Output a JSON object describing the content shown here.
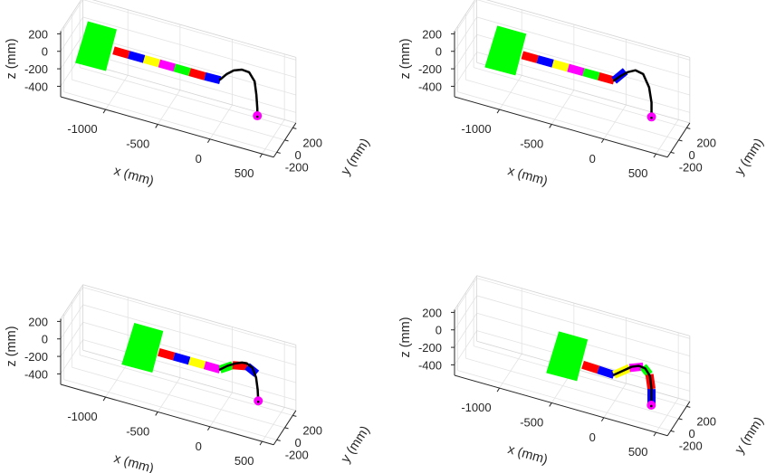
{
  "link_colors": [
    "#ff0000",
    "#0000ff",
    "#ffff00",
    "#ff00ff",
    "#00ff00",
    "#ff0000",
    "#0000ff"
  ],
  "base_color": "#00ff00",
  "cable_color": "#000000",
  "end_effector_color": "#ff00ff",
  "chart_data": [
    {
      "type": "line",
      "projection": "3d",
      "xlabel": "x (mm)",
      "ylabel": "y (mm)",
      "zlabel": "z (mm)",
      "xticks": [
        -1000,
        -500,
        0,
        500
      ],
      "yticks": [
        -200,
        0,
        200
      ],
      "zticks": [
        -400,
        -200,
        0,
        200
      ],
      "xlim": [
        -1430,
        610
      ],
      "ylim": [
        -280,
        280
      ],
      "zlim": [
        -520,
        230
      ],
      "grid": true,
      "base": {
        "x": -1190,
        "y": 0,
        "z": -50
      },
      "joints": [
        [
          -1030,
          -50
        ],
        [
          -884,
          -50
        ],
        [
          -738,
          -50
        ],
        [
          -592,
          -50
        ],
        [
          -446,
          -50
        ],
        [
          -300,
          -50
        ],
        [
          -154,
          -50
        ],
        [
          -8,
          -45
        ]
      ],
      "cable": [
        [
          -9,
          -38
        ],
        [
          52,
          44
        ],
        [
          121,
          110
        ],
        [
          199,
          146
        ],
        [
          269,
          139
        ],
        [
          321,
          53
        ],
        [
          338,
          -96
        ],
        [
          347,
          -249
        ],
        [
          347,
          -332
        ]
      ],
      "end_effector": [
        347,
        -332
      ]
    },
    {
      "type": "line",
      "projection": "3d",
      "xlabel": "x (mm)",
      "ylabel": "y (mm)",
      "zlabel": "z (mm)",
      "xticks": [
        -1000,
        -500,
        0,
        500
      ],
      "yticks": [
        -200,
        0,
        200
      ],
      "zticks": [
        -400,
        -200,
        0,
        200
      ],
      "xlim": [
        -1430,
        610
      ],
      "ylim": [
        -280,
        280
      ],
      "zlim": [
        -520,
        230
      ],
      "grid": true,
      "base": {
        "x": -1040,
        "y": 0,
        "z": -50
      },
      "joints": [
        [
          -888,
          -55
        ],
        [
          -741,
          -54
        ],
        [
          -595,
          -53
        ],
        [
          -448,
          -52
        ],
        [
          -302,
          -51
        ],
        [
          -155,
          -50
        ],
        [
          -9,
          -49
        ],
        [
          100,
          95
        ]
      ],
      "cable": [
        [
          -9,
          -49
        ],
        [
          50,
          20
        ],
        [
          120,
          90
        ],
        [
          197,
          138
        ],
        [
          270,
          120
        ],
        [
          327,
          -14
        ],
        [
          350,
          -179
        ],
        [
          350,
          -344
        ]
      ],
      "end_effector": [
        350,
        -344
      ]
    },
    {
      "type": "line",
      "projection": "3d",
      "xlabel": "x (mm)",
      "ylabel": "y (mm)",
      "zlabel": "z (mm)",
      "xticks": [
        -1000,
        -500,
        0,
        500
      ],
      "yticks": [
        -200,
        0,
        200
      ],
      "zticks": [
        -400,
        -200,
        0,
        200
      ],
      "xlim": [
        -1430,
        610
      ],
      "ylim": [
        -280,
        280
      ],
      "zlim": [
        -520,
        230
      ],
      "grid": true,
      "base": {
        "x": -745,
        "y": 0,
        "z": -60
      },
      "joints": [
        [
          -598,
          -65
        ],
        [
          -451,
          -65
        ],
        [
          -304,
          -65
        ],
        [
          -157,
          -65
        ],
        [
          -10,
          -65
        ],
        [
          110,
          25
        ],
        [
          250,
          60
        ],
        [
          340,
          5
        ]
      ],
      "cable": [
        [
          -10,
          -65
        ],
        [
          60,
          0
        ],
        [
          130,
          50
        ],
        [
          200,
          85
        ],
        [
          245,
          92
        ],
        [
          300,
          60
        ],
        [
          335,
          -40
        ],
        [
          350,
          -170
        ],
        [
          356,
          -300
        ]
      ],
      "end_effector": [
        356,
        -300
      ]
    },
    {
      "type": "line",
      "projection": "3d",
      "xlabel": "x (mm)",
      "ylabel": "y (mm)",
      "zlabel": "z (mm)",
      "xticks": [
        -1000,
        -500,
        0,
        500
      ],
      "yticks": [
        -200,
        0,
        200
      ],
      "zticks": [
        -400,
        -200,
        0,
        200
      ],
      "xlim": [
        -1430,
        610
      ],
      "ylim": [
        -280,
        280
      ],
      "zlim": [
        -520,
        230
      ],
      "grid": true,
      "base": {
        "x": -451,
        "y": 0,
        "z": -160
      },
      "joints": [
        [
          -309,
          -215
        ],
        [
          -160,
          -222
        ],
        [
          -10,
          -230
        ],
        [
          140,
          -100
        ],
        [
          270,
          -40
        ],
        [
          330,
          -110
        ],
        [
          350,
          -270
        ],
        [
          350,
          -450
        ]
      ],
      "cable": [
        [
          -10,
          -230
        ],
        [
          80,
          -150
        ],
        [
          160,
          -80
        ],
        [
          230,
          -45
        ],
        [
          290,
          -55
        ],
        [
          335,
          -125
        ],
        [
          350,
          -270
        ],
        [
          350,
          -450
        ]
      ],
      "end_effector": [
        348,
        -455
      ]
    }
  ]
}
